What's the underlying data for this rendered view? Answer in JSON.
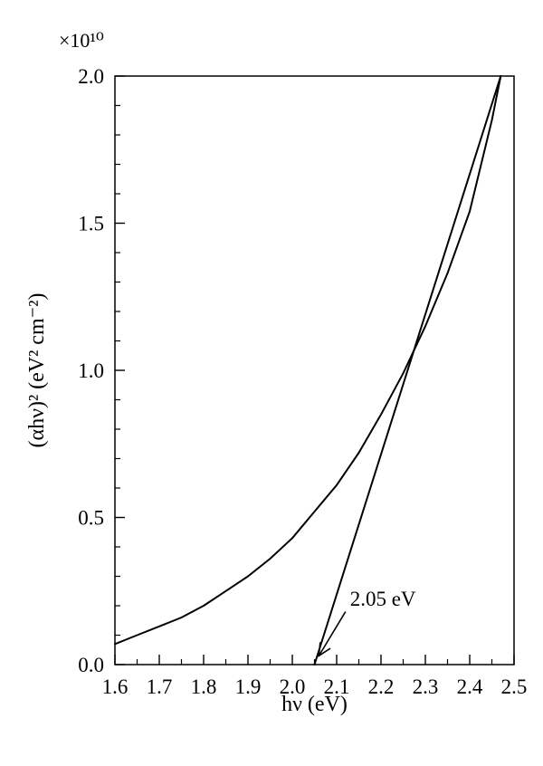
{
  "chart_data": {
    "type": "line",
    "title": "",
    "xlabel": "hν (eV)",
    "ylabel": "(αhν)² (eV² cm⁻²)",
    "y_multiplier": "×10¹⁰",
    "xlim": [
      1.6,
      2.5
    ],
    "ylim": [
      0.0,
      2.0
    ],
    "x_ticks": [
      1.6,
      1.7,
      1.8,
      1.9,
      2.0,
      2.1,
      2.2,
      2.3,
      2.4,
      2.5
    ],
    "x_tick_labels": [
      "1.6",
      "1.7",
      "1.8",
      "1.9",
      "2.0",
      "2.1",
      "2.2",
      "2.3",
      "2.4",
      "2.5"
    ],
    "y_ticks": [
      0.0,
      0.5,
      1.0,
      1.5,
      2.0
    ],
    "y_tick_labels": [
      "0.0",
      "0.5",
      "1.0",
      "1.5",
      "2.0"
    ],
    "y_minor_step": 0.1,
    "x_minor_step": 0.05,
    "grid": false,
    "legend": "none",
    "colors": {
      "line": "#000000",
      "frame": "#000000"
    },
    "series": [
      {
        "kind": "curve",
        "x": [
          1.6,
          1.65,
          1.7,
          1.75,
          1.8,
          1.85,
          1.9,
          1.95,
          2.0,
          2.05,
          2.1,
          2.15,
          2.2,
          2.25,
          2.3,
          2.35,
          2.4,
          2.45,
          2.47
        ],
        "y": [
          0.07,
          0.1,
          0.13,
          0.16,
          0.2,
          0.25,
          0.3,
          0.36,
          0.43,
          0.52,
          0.61,
          0.72,
          0.85,
          0.99,
          1.15,
          1.33,
          1.54,
          1.85,
          2.0
        ]
      },
      {
        "kind": "tangent",
        "x": [
          2.05,
          2.47
        ],
        "y": [
          0.0,
          2.0
        ]
      }
    ],
    "annotations": [
      {
        "text": "2.05 eV",
        "label_x": 2.13,
        "label_y": 0.2,
        "arrow_from": [
          2.12,
          0.18
        ],
        "arrow_to": [
          2.06,
          0.03
        ]
      }
    ]
  }
}
